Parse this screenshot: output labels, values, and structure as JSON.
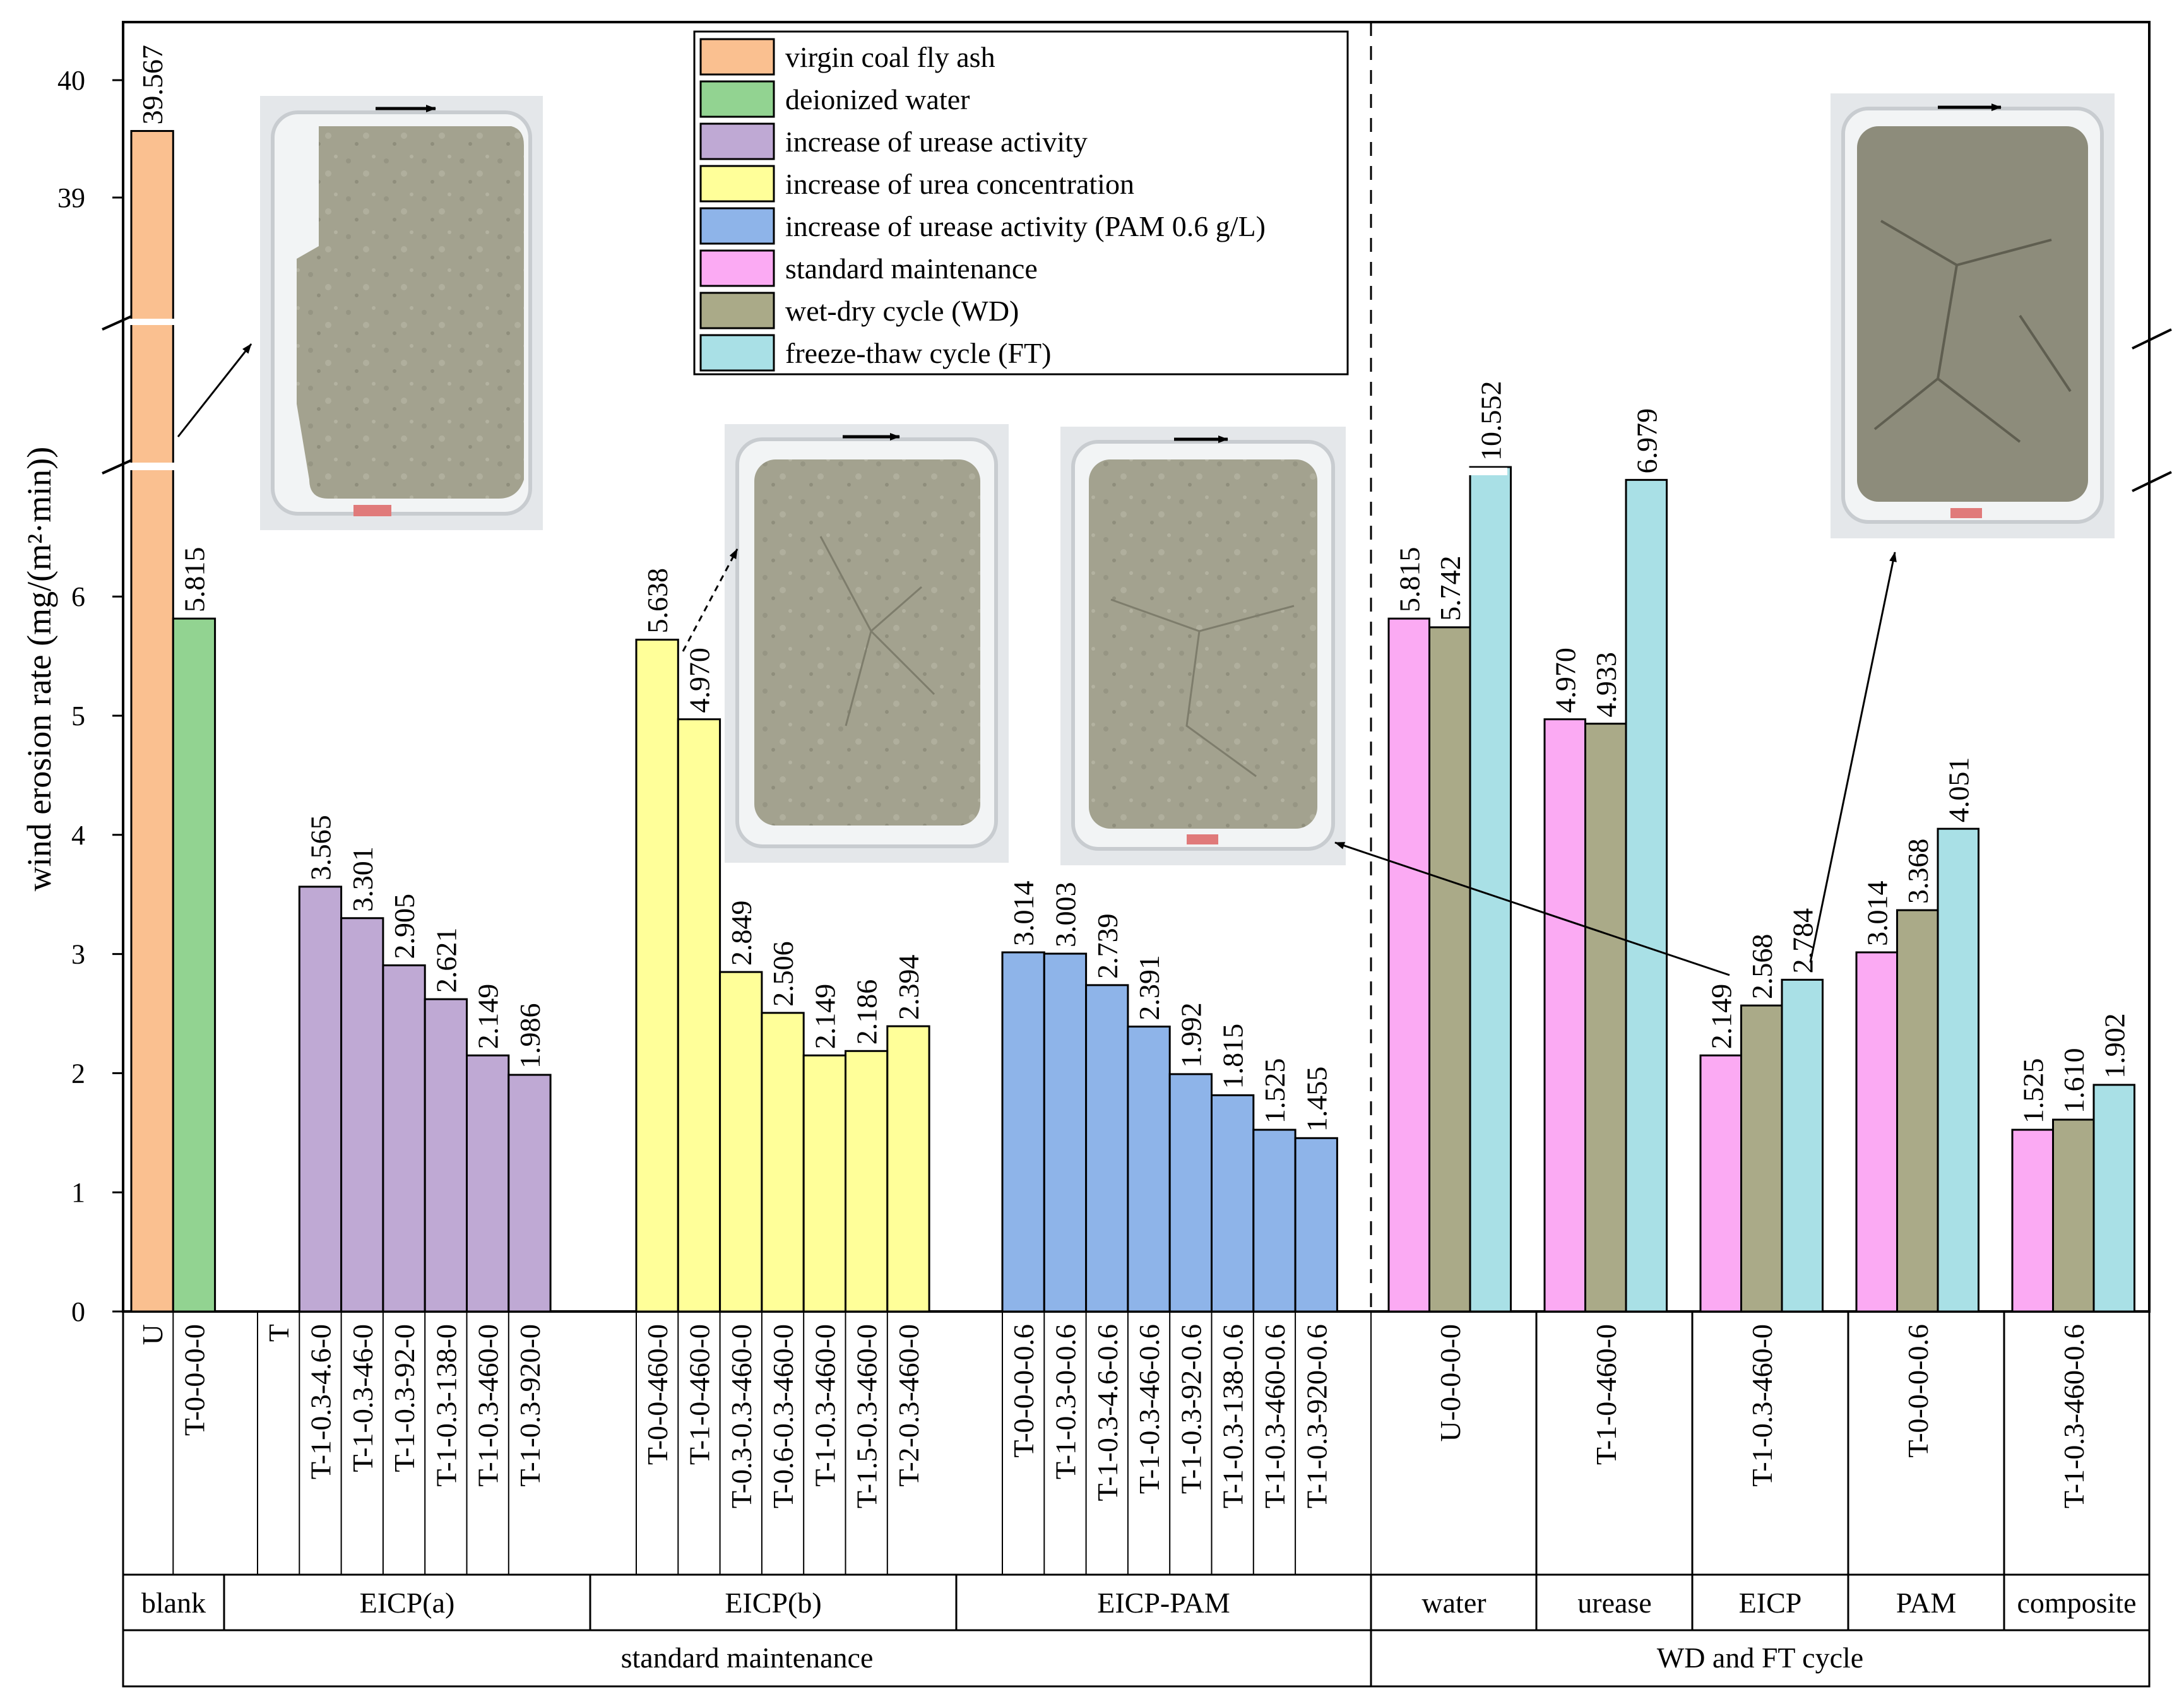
{
  "chart_data": {
    "type": "bar",
    "ylabel": "wind erosion rate (mg/(m²·min))",
    "y_axis": {
      "lower_range": [
        0,
        7
      ],
      "upper_range": [
        38,
        40.5
      ],
      "broken": true,
      "ticks": [
        0,
        1,
        2,
        3,
        4,
        5,
        6,
        39,
        40
      ]
    },
    "legend": {
      "placement": "top-center",
      "entries": [
        {
          "name": "virgin coal fly ash",
          "color": "#fac090"
        },
        {
          "name": "deionized water",
          "color": "#92d391"
        },
        {
          "name": "increase of urease activity",
          "color": "#bfa9d4"
        },
        {
          "name": "increase of urea concentration",
          "color": "#ffff99"
        },
        {
          "name": "increase of urease activity (PAM 0.6 g/L)",
          "color": "#8eb4e9"
        },
        {
          "name": "standard maintenance",
          "color": "#fbaaf3"
        },
        {
          "name": "wet-dry cycle (WD)",
          "color": "#aaaa88"
        },
        {
          "name": "freeze-thaw cycle (FT)",
          "color": "#a9e0e6"
        }
      ]
    },
    "bars": [
      {
        "category": "U",
        "value": 39.567,
        "label": "39.567",
        "series": 0
      },
      {
        "category": "T-0-0-0-0",
        "value": 5.815,
        "label": "5.815",
        "series": 1
      },
      {
        "category": "T",
        "value": null,
        "label": "",
        "series": 2
      },
      {
        "category": "T-1-0.3-4.6-0",
        "value": 3.565,
        "label": "3.565",
        "series": 2
      },
      {
        "category": "T-1-0.3-46-0",
        "value": 3.301,
        "label": "3.301",
        "series": 2
      },
      {
        "category": "T-1-0.3-92-0",
        "value": 2.905,
        "label": "2.905",
        "series": 2
      },
      {
        "category": "T-1-0.3-138-0",
        "value": 2.621,
        "label": "2.621",
        "series": 2
      },
      {
        "category": "T-1-0.3-460-0",
        "value": 2.149,
        "label": "2.149",
        "series": 2
      },
      {
        "category": "T-1-0.3-920-0",
        "value": 1.986,
        "label": "1.986",
        "series": 2
      },
      {
        "category": "T-0-0-460-0",
        "value": 5.638,
        "label": "5.638",
        "series": 3
      },
      {
        "category": "T-1-0-460-0",
        "value": 4.97,
        "label": "4.970",
        "series": 3
      },
      {
        "category": "T-0.3-0.3-460-0",
        "value": 2.849,
        "label": "2.849",
        "series": 3
      },
      {
        "category": "T-0.6-0.3-460-0",
        "value": 2.506,
        "label": "2.506",
        "series": 3
      },
      {
        "category": "T-1-0.3-460-0",
        "value": 2.149,
        "label": "2.149",
        "series": 3
      },
      {
        "category": "T-1.5-0.3-460-0",
        "value": 2.186,
        "label": "2.186",
        "series": 3
      },
      {
        "category": "T-2-0.3-460-0",
        "value": 2.394,
        "label": "2.394",
        "series": 3
      },
      {
        "category": "T-0-0-0-0.6",
        "value": 3.014,
        "label": "3.014",
        "series": 4
      },
      {
        "category": "T-1-0.3-0-0.6",
        "value": 3.003,
        "label": "3.003",
        "series": 4
      },
      {
        "category": "T-1-0.3-4.6-0.6",
        "value": 2.739,
        "label": "2.739",
        "series": 4
      },
      {
        "category": "T-1-0.3-46-0.6",
        "value": 2.391,
        "label": "2.391",
        "series": 4
      },
      {
        "category": "T-1-0.3-92-0.6",
        "value": 1.992,
        "label": "1.992",
        "series": 4
      },
      {
        "category": "T-1-0.3-138-0.6",
        "value": 1.815,
        "label": "1.815",
        "series": 4
      },
      {
        "category": "T-1-0.3-460-0.6",
        "value": 1.525,
        "label": "1.525",
        "series": 4
      },
      {
        "category": "T-1-0.3-920-0.6",
        "value": 1.455,
        "label": "1.455",
        "series": 4
      }
    ],
    "cycle_groups": [
      {
        "category": "U-0-0-0-0",
        "group": "water",
        "values": [
          5.815,
          5.742,
          10.552
        ],
        "labels": [
          "5.815",
          "5.742",
          "10.552"
        ]
      },
      {
        "category": "T-1-0-460-0",
        "group": "urease",
        "values": [
          4.97,
          4.933,
          6.979
        ],
        "labels": [
          "4.970",
          "4.933",
          "6.979"
        ]
      },
      {
        "category": "T-1-0.3-460-0",
        "group": "EICP",
        "values": [
          2.149,
          2.568,
          2.784
        ],
        "labels": [
          "2.149",
          "2.568",
          "2.784"
        ]
      },
      {
        "category": "T-0-0-0-0.6",
        "group": "PAM",
        "values": [
          3.014,
          3.368,
          4.051
        ],
        "labels": [
          "3.014",
          "3.368",
          "4.051"
        ]
      },
      {
        "category": "T-1-0.3-460-0.6",
        "group": "composite",
        "values": [
          1.525,
          1.61,
          1.902
        ],
        "labels": [
          "1.525",
          "1.610",
          "1.902"
        ]
      }
    ],
    "cycle_series": [
      5,
      6,
      7
    ],
    "groups_level1": [
      {
        "label": "blank"
      },
      {
        "label": "EICP(a)"
      },
      {
        "label": "EICP(b)"
      },
      {
        "label": "EICP-PAM"
      },
      {
        "label": "water"
      },
      {
        "label": "urease"
      },
      {
        "label": "EICP"
      },
      {
        "label": "PAM"
      },
      {
        "label": "composite"
      }
    ],
    "groups_level2": [
      {
        "label": "standard maintenance"
      },
      {
        "label": "WD and FT cycle"
      }
    ]
  }
}
